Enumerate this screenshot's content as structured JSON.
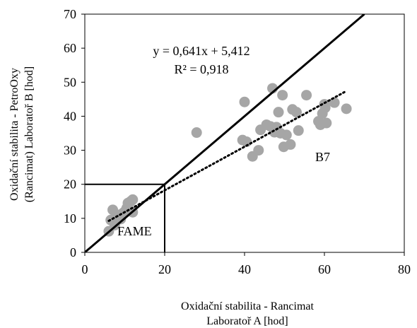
{
  "chart_data": {
    "type": "scatter",
    "xlabel": [
      "Oxidační stabilita - Rancimat",
      "Laboratoř A [hod]"
    ],
    "ylabel": [
      "Oxidační stabilita - PetroOxy",
      "(Rancimat) Laboratoř B [hod]"
    ],
    "xlim": [
      0,
      80
    ],
    "ylim": [
      0,
      70
    ],
    "xticks": [
      "0",
      "20",
      "40",
      "60",
      "80"
    ],
    "yticks": [
      "0",
      "10",
      "20",
      "30",
      "40",
      "50",
      "60",
      "70"
    ],
    "grid": false,
    "legend": "none",
    "colors": {
      "points": "#a6a6a6",
      "lines": "#000000"
    },
    "annotations": {
      "equation": "y = 0,641x + 5,412",
      "r_squared": "R² = 0,918",
      "group_b7": "B7",
      "group_fame": "FAME"
    },
    "identity_line": [
      [
        0,
        0
      ],
      [
        70,
        70
      ]
    ],
    "fame_box": {
      "x": [
        0,
        20
      ],
      "y": [
        0,
        20
      ]
    },
    "trendline": {
      "slope": 0.641,
      "intercept": 5.412,
      "x_range": [
        6,
        65
      ]
    },
    "points": [
      [
        6,
        6.2
      ],
      [
        6.5,
        9.5
      ],
      [
        7,
        12.5
      ],
      [
        7.5,
        8
      ],
      [
        8,
        10.5
      ],
      [
        8.5,
        11
      ],
      [
        9,
        9.8
      ],
      [
        9.5,
        11.5
      ],
      [
        10,
        12
      ],
      [
        10.5,
        13
      ],
      [
        10.8,
        14.5
      ],
      [
        11,
        12.5
      ],
      [
        11.5,
        15
      ],
      [
        12,
        15.5
      ],
      [
        12,
        11.8
      ],
      [
        28,
        35.2
      ],
      [
        39.5,
        33
      ],
      [
        40,
        44.2
      ],
      [
        40.5,
        32.5
      ],
      [
        42,
        28.2
      ],
      [
        43.5,
        30
      ],
      [
        44,
        36
      ],
      [
        45.5,
        37.5
      ],
      [
        46.5,
        37
      ],
      [
        47,
        48.2
      ],
      [
        47.5,
        35.3
      ],
      [
        48,
        36.8
      ],
      [
        48.5,
        41.2
      ],
      [
        49,
        35
      ],
      [
        49.5,
        46.2
      ],
      [
        49.8,
        31
      ],
      [
        50.5,
        34.5
      ],
      [
        51.5,
        31.7
      ],
      [
        52,
        42
      ],
      [
        53,
        41.2
      ],
      [
        53.5,
        35.8
      ],
      [
        55.5,
        46.2
      ],
      [
        58.5,
        38.5
      ],
      [
        59,
        37.5
      ],
      [
        59.5,
        40.8
      ],
      [
        60,
        43.5
      ],
      [
        60.5,
        38
      ],
      [
        62.5,
        44
      ],
      [
        65.5,
        42.2
      ],
      [
        60.2,
        42.5
      ]
    ]
  }
}
